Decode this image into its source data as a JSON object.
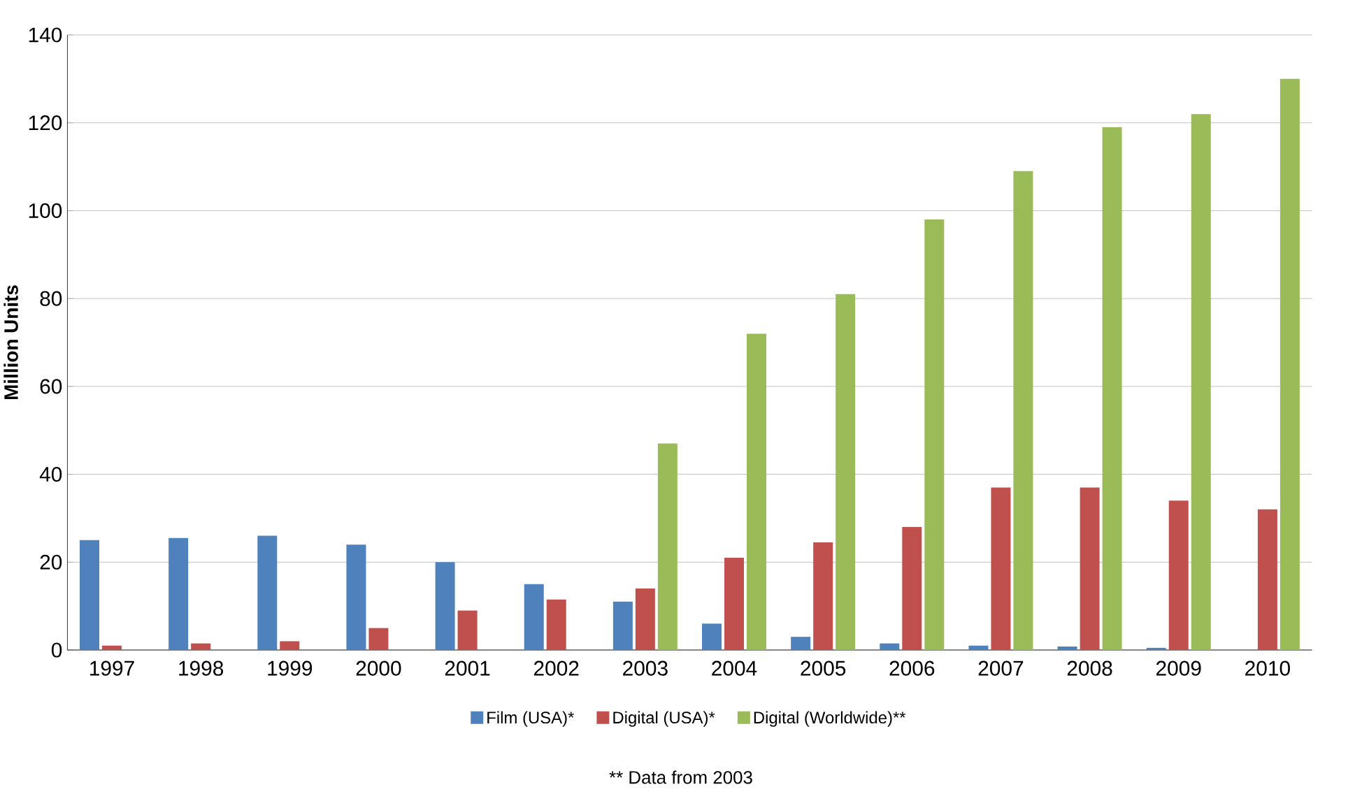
{
  "chart_data": {
    "type": "bar",
    "ylabel": "Million Units",
    "categories": [
      "1997",
      "1998",
      "1999",
      "2000",
      "2001",
      "2002",
      "2003",
      "2004",
      "2005",
      "2006",
      "2007",
      "2008",
      "2009",
      "2010"
    ],
    "series": [
      {
        "name": "Film (USA)*",
        "color": "#4f81bd",
        "values": [
          25,
          25.5,
          26,
          24,
          20,
          15,
          11,
          6,
          3,
          1.5,
          1,
          0.8,
          0.5,
          null
        ]
      },
      {
        "name": "Digital (USA)*",
        "color": "#c0504d",
        "values": [
          1,
          1.5,
          2,
          5,
          9,
          11.5,
          14,
          21,
          24.5,
          28,
          37,
          37,
          34,
          32
        ]
      },
      {
        "name": "Digital (Worldwide)**",
        "color": "#9bbb59",
        "values": [
          null,
          null,
          null,
          null,
          null,
          null,
          47,
          72,
          81,
          98,
          109,
          119,
          122,
          130
        ]
      }
    ],
    "ylim": [
      0,
      140
    ],
    "yticks": [
      0,
      20,
      40,
      60,
      80,
      100,
      120,
      140
    ],
    "grid": "y",
    "legend": "bottom",
    "annotations": [
      "** Data from 2003"
    ]
  }
}
